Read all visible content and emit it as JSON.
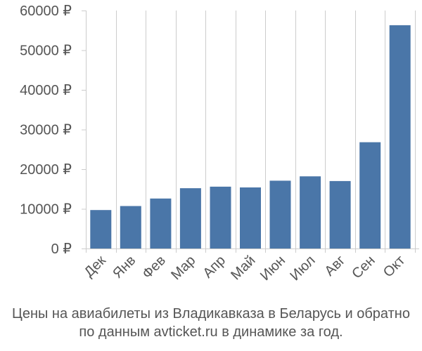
{
  "chart_data": {
    "type": "bar",
    "title": "",
    "xlabel": "",
    "ylabel": "",
    "categories": [
      "Дек",
      "Янв",
      "Фев",
      "Мар",
      "Апр",
      "Май",
      "Июн",
      "Июл",
      "Авг",
      "Сен",
      "Окт"
    ],
    "values": [
      9700,
      10700,
      12600,
      15200,
      15600,
      15400,
      17100,
      18200,
      17000,
      26800,
      56300
    ],
    "ylim": [
      0,
      60000
    ],
    "yticks": [
      0,
      10000,
      20000,
      30000,
      40000,
      50000,
      60000
    ],
    "ytick_labels": [
      "0 ₽",
      "10000 ₽",
      "20000 ₽",
      "30000 ₽",
      "40000 ₽",
      "50000 ₽",
      "60000 ₽"
    ],
    "grid": "vertical",
    "bar_color": "#4a76a8",
    "grid_color": "#cccccc"
  },
  "caption": {
    "line1": "Цены на авиабилеты из Владикавказа в Беларусь и обратно",
    "line2": "по данным avticket.ru в динамике за год."
  }
}
